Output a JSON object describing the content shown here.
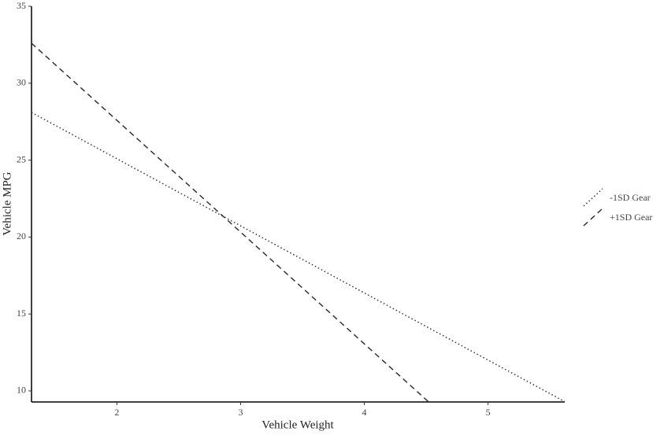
{
  "chart_data": {
    "type": "line",
    "x_label": "Vehicle Weight",
    "y_label": "Vehicle MPG",
    "xlim": [
      1.31,
      5.62
    ],
    "ylim": [
      9.28,
      35
    ],
    "xticks": [
      2,
      3,
      4,
      5
    ],
    "yticks": [
      10,
      15,
      20,
      25,
      30,
      35
    ],
    "grid": false,
    "legend": "right",
    "series": [
      {
        "name": "-1SD Gear",
        "color": "#333333",
        "linestyle": "dotted",
        "x": [
          1.31,
          5.62
        ],
        "values": [
          28.1,
          9.3
        ]
      },
      {
        "name": "+1SD Gear",
        "color": "#333333",
        "linestyle": "dashed",
        "x": [
          1.31,
          4.52
        ],
        "values": [
          32.6,
          9.28
        ]
      }
    ]
  }
}
